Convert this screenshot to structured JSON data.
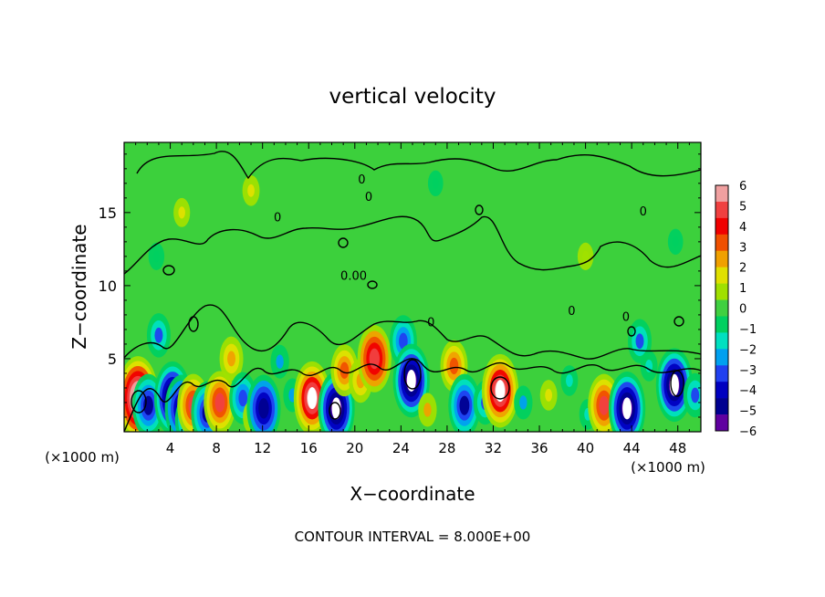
{
  "chart_data": {
    "type": "heatmap",
    "title": "vertical velocity",
    "xlabel": "X−coordinate",
    "ylabel": "Z−coordinate",
    "x_unit_label": "(×1000 m)",
    "x_unit_label_right": "(×1000 m)",
    "x_ticks": [
      4,
      8,
      12,
      16,
      20,
      24,
      28,
      32,
      36,
      40,
      44,
      48
    ],
    "y_ticks": [
      5,
      10,
      15
    ],
    "xlim": [
      0,
      50
    ],
    "ylim": [
      0,
      19.8
    ],
    "contour_interval_text": "CONTOUR INTERVAL = 8.000E+00",
    "contour_labels": [
      {
        "text": "0.00",
        "x": 19.9,
        "z": 10.4
      },
      {
        "text": "0",
        "x": 20.6,
        "z": 17.0
      },
      {
        "text": "0",
        "x": 21.2,
        "z": 15.8
      },
      {
        "text": "0",
        "x": 13.3,
        "z": 14.4
      },
      {
        "text": "0",
        "x": 26.6,
        "z": 7.2
      },
      {
        "text": "0",
        "x": 38.8,
        "z": 8.0
      },
      {
        "text": "0",
        "x": 43.5,
        "z": 7.6
      },
      {
        "text": "0",
        "x": 45.0,
        "z": 14.8
      }
    ],
    "colorbar": {
      "labels": [
        "6",
        "5",
        "4",
        "3",
        "2",
        "1",
        "0",
        "−1",
        "−2",
        "−3",
        "−4",
        "−5",
        "−6"
      ],
      "colors": [
        "#f0a0a0",
        "#f04040",
        "#f00000",
        "#f05000",
        "#f0a000",
        "#e0e000",
        "#a0e000",
        "#40d040",
        "#00d060",
        "#00e0c0",
        "#00a0f0",
        "#2040f0",
        "#0000c0",
        "#000090",
        "#6000a0"
      ]
    },
    "cells": [
      {
        "x": 1.2,
        "z": 2.3,
        "w": 1.2
      },
      {
        "x": 2.1,
        "z": 1.8,
        "w": -0.8
      },
      {
        "x": 3.0,
        "z": 6.6,
        "w": -0.5
      },
      {
        "x": 4.2,
        "z": 2.3,
        "w": -1.0
      },
      {
        "x": 5.0,
        "z": 1.6,
        "w": -0.9
      },
      {
        "x": 5.6,
        "z": 0.8,
        "w": -0.6
      },
      {
        "x": 6.0,
        "z": 1.8,
        "w": 0.8
      },
      {
        "x": 7.2,
        "z": 1.3,
        "w": -0.8
      },
      {
        "x": 8.3,
        "z": 2.0,
        "w": 0.8
      },
      {
        "x": 9.3,
        "z": 5.0,
        "w": 0.5
      },
      {
        "x": 10.3,
        "z": 2.3,
        "w": -0.6
      },
      {
        "x": 11.1,
        "z": 1.0,
        "w": 0.4
      },
      {
        "x": 12.1,
        "z": 1.6,
        "w": -0.9
      },
      {
        "x": 13.5,
        "z": 4.8,
        "w": -0.4
      },
      {
        "x": 14.6,
        "z": 2.5,
        "w": -0.4
      },
      {
        "x": 16.3,
        "z": 2.3,
        "w": 1.0
      },
      {
        "x": 18.4,
        "z": 1.6,
        "w": -1.0
      },
      {
        "x": 19.1,
        "z": 4.2,
        "w": 0.6
      },
      {
        "x": 20.5,
        "z": 3.5,
        "w": 0.5
      },
      {
        "x": 21.7,
        "z": 5.0,
        "w": 0.9
      },
      {
        "x": 24.2,
        "z": 6.2,
        "w": -0.6
      },
      {
        "x": 24.9,
        "z": 3.5,
        "w": -1.0
      },
      {
        "x": 26.3,
        "z": 1.5,
        "w": 0.4
      },
      {
        "x": 28.6,
        "z": 4.5,
        "w": 0.6
      },
      {
        "x": 29.5,
        "z": 1.8,
        "w": -0.8
      },
      {
        "x": 31.3,
        "z": 2.0,
        "w": -0.5
      },
      {
        "x": 32.6,
        "z": 2.8,
        "w": 1.0
      },
      {
        "x": 34.6,
        "z": 2.0,
        "w": -0.4
      },
      {
        "x": 36.8,
        "z": 2.5,
        "w": 0.3
      },
      {
        "x": 38.6,
        "z": 3.5,
        "w": -0.3
      },
      {
        "x": 40.2,
        "z": 1.2,
        "w": -0.3
      },
      {
        "x": 41.6,
        "z": 1.8,
        "w": 0.8
      },
      {
        "x": 43.6,
        "z": 1.6,
        "w": -1.0
      },
      {
        "x": 44.7,
        "z": 6.2,
        "w": -0.5
      },
      {
        "x": 45.5,
        "z": 4.5,
        "w": -0.3
      },
      {
        "x": 47.7,
        "z": 3.2,
        "w": -1.0
      },
      {
        "x": 49.5,
        "z": 2.5,
        "w": -0.5
      },
      {
        "x": 2.8,
        "z": 12.0,
        "w": -0.2
      },
      {
        "x": 11.0,
        "z": 16.5,
        "w": 0.3
      },
      {
        "x": 5.0,
        "z": 15.0,
        "w": 0.25
      },
      {
        "x": 27.0,
        "z": 17.0,
        "w": -0.15
      },
      {
        "x": 40.0,
        "z": 12.0,
        "w": 0.2
      },
      {
        "x": 47.8,
        "z": 13.0,
        "w": -0.15
      }
    ]
  }
}
